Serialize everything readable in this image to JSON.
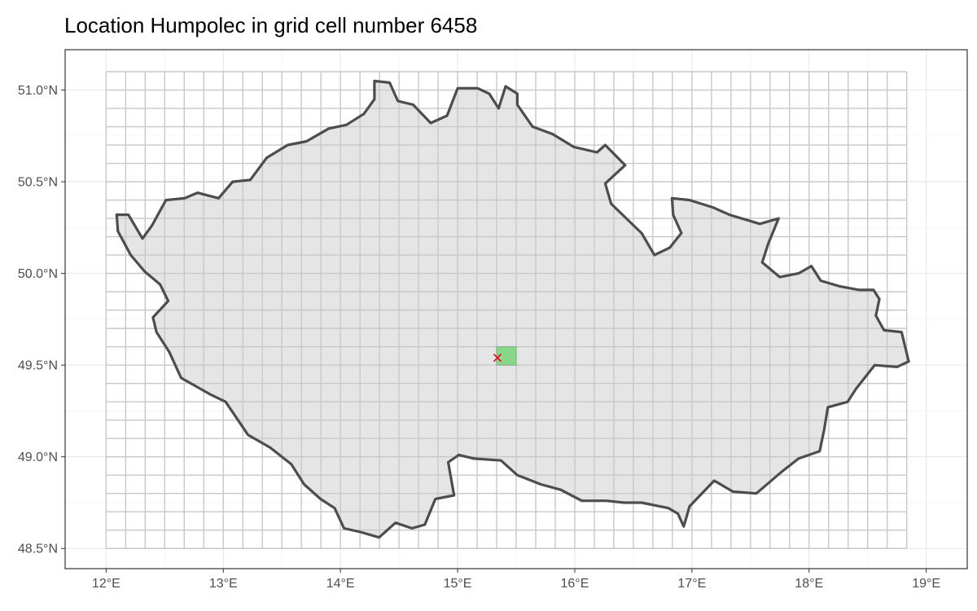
{
  "title": "Location Humpolec in grid cell number 6458",
  "map": {
    "region": "Czech Republic",
    "crs": "geographic (lon/lat)",
    "lon_range": [
      11.65,
      19.35
    ],
    "lat_range": [
      48.39,
      51.22
    ],
    "x_ticks": [
      12,
      13,
      14,
      15,
      16,
      17,
      18,
      19
    ],
    "x_tick_labels": [
      "12°E",
      "13°E",
      "14°E",
      "15°E",
      "16°E",
      "17°E",
      "18°E",
      "19°E"
    ],
    "y_ticks": [
      48.5,
      49.0,
      49.5,
      50.0,
      50.5,
      51.0
    ],
    "y_tick_labels": [
      "48.5°N",
      "49.0°N",
      "49.5°N",
      "50.0°N",
      "50.5°N",
      "51.0°N"
    ],
    "grid": {
      "lon_min": 12.0,
      "lon_max": 18.8333,
      "cell_lon": 0.16667,
      "lat_min": 48.5,
      "lat_max": 51.1,
      "cell_lat": 0.1,
      "line_color": "#c8c8c8"
    },
    "highlighted_cell": {
      "number": "6458",
      "lon_min": 15.3333,
      "lon_max": 15.5,
      "lat_min": 49.5,
      "lat_max": 49.6,
      "fill": "#88d888"
    },
    "location": {
      "name": "Humpolec",
      "lon": 15.34,
      "lat": 49.54,
      "marker": "cross",
      "color": "#e8001c"
    },
    "border": {
      "stroke": "#4d4d4d",
      "fill": "#e5e5e5",
      "points": [
        [
          12.09,
          50.32
        ],
        [
          12.19,
          50.32
        ],
        [
          12.31,
          50.19
        ],
        [
          12.39,
          50.26
        ],
        [
          12.51,
          50.4
        ],
        [
          12.67,
          50.41
        ],
        [
          12.78,
          50.44
        ],
        [
          12.96,
          50.41
        ],
        [
          13.08,
          50.5
        ],
        [
          13.23,
          50.51
        ],
        [
          13.37,
          50.63
        ],
        [
          13.55,
          50.7
        ],
        [
          13.71,
          50.72
        ],
        [
          13.9,
          50.79
        ],
        [
          14.05,
          50.81
        ],
        [
          14.2,
          50.87
        ],
        [
          14.29,
          50.95
        ],
        [
          14.29,
          51.05
        ],
        [
          14.42,
          51.04
        ],
        [
          14.49,
          50.94
        ],
        [
          14.62,
          50.92
        ],
        [
          14.77,
          50.82
        ],
        [
          14.91,
          50.86
        ],
        [
          15.0,
          51.01
        ],
        [
          15.17,
          51.01
        ],
        [
          15.27,
          50.98
        ],
        [
          15.35,
          50.9
        ],
        [
          15.41,
          51.02
        ],
        [
          15.51,
          50.98
        ],
        [
          15.51,
          50.92
        ],
        [
          15.64,
          50.8
        ],
        [
          15.81,
          50.76
        ],
        [
          15.99,
          50.69
        ],
        [
          16.19,
          50.66
        ],
        [
          16.26,
          50.7
        ],
        [
          16.43,
          50.59
        ],
        [
          16.26,
          50.49
        ],
        [
          16.31,
          50.38
        ],
        [
          16.44,
          50.3
        ],
        [
          16.57,
          50.22
        ],
        [
          16.68,
          50.1
        ],
        [
          16.81,
          50.14
        ],
        [
          16.91,
          50.22
        ],
        [
          16.84,
          50.32
        ],
        [
          16.83,
          50.41
        ],
        [
          16.98,
          50.4
        ],
        [
          17.18,
          50.36
        ],
        [
          17.32,
          50.32
        ],
        [
          17.58,
          50.27
        ],
        [
          17.74,
          50.3
        ],
        [
          17.65,
          50.16
        ],
        [
          17.6,
          50.06
        ],
        [
          17.75,
          49.98
        ],
        [
          17.91,
          50.0
        ],
        [
          18.02,
          50.04
        ],
        [
          18.1,
          49.96
        ],
        [
          18.26,
          49.93
        ],
        [
          18.43,
          49.91
        ],
        [
          18.55,
          49.91
        ],
        [
          18.6,
          49.86
        ],
        [
          18.57,
          49.77
        ],
        [
          18.64,
          49.69
        ],
        [
          18.79,
          49.68
        ],
        [
          18.85,
          49.52
        ],
        [
          18.75,
          49.49
        ],
        [
          18.56,
          49.5
        ],
        [
          18.4,
          49.37
        ],
        [
          18.33,
          49.3
        ],
        [
          18.16,
          49.27
        ],
        [
          18.13,
          49.15
        ],
        [
          18.09,
          49.03
        ],
        [
          17.91,
          48.99
        ],
        [
          17.77,
          48.92
        ],
        [
          17.55,
          48.8
        ],
        [
          17.35,
          48.81
        ],
        [
          17.19,
          48.87
        ],
        [
          16.98,
          48.73
        ],
        [
          16.93,
          48.62
        ],
        [
          16.88,
          48.69
        ],
        [
          16.8,
          48.72
        ],
        [
          16.57,
          48.75
        ],
        [
          16.42,
          48.75
        ],
        [
          16.27,
          48.76
        ],
        [
          16.06,
          48.76
        ],
        [
          15.88,
          48.82
        ],
        [
          15.71,
          48.85
        ],
        [
          15.51,
          48.9
        ],
        [
          15.37,
          48.98
        ],
        [
          15.14,
          48.99
        ],
        [
          15.01,
          49.01
        ],
        [
          14.92,
          48.97
        ],
        [
          14.97,
          48.79
        ],
        [
          14.81,
          48.77
        ],
        [
          14.72,
          48.63
        ],
        [
          14.61,
          48.61
        ],
        [
          14.47,
          48.64
        ],
        [
          14.33,
          48.56
        ],
        [
          14.17,
          48.59
        ],
        [
          14.03,
          48.61
        ],
        [
          13.95,
          48.72
        ],
        [
          13.83,
          48.77
        ],
        [
          13.69,
          48.85
        ],
        [
          13.58,
          48.96
        ],
        [
          13.4,
          49.05
        ],
        [
          13.21,
          49.12
        ],
        [
          13.02,
          49.3
        ],
        [
          12.89,
          49.34
        ],
        [
          12.64,
          49.43
        ],
        [
          12.54,
          49.57
        ],
        [
          12.43,
          49.68
        ],
        [
          12.4,
          49.76
        ],
        [
          12.53,
          49.85
        ],
        [
          12.46,
          49.94
        ],
        [
          12.33,
          50.01
        ],
        [
          12.21,
          50.1
        ],
        [
          12.1,
          50.23
        ]
      ]
    }
  }
}
